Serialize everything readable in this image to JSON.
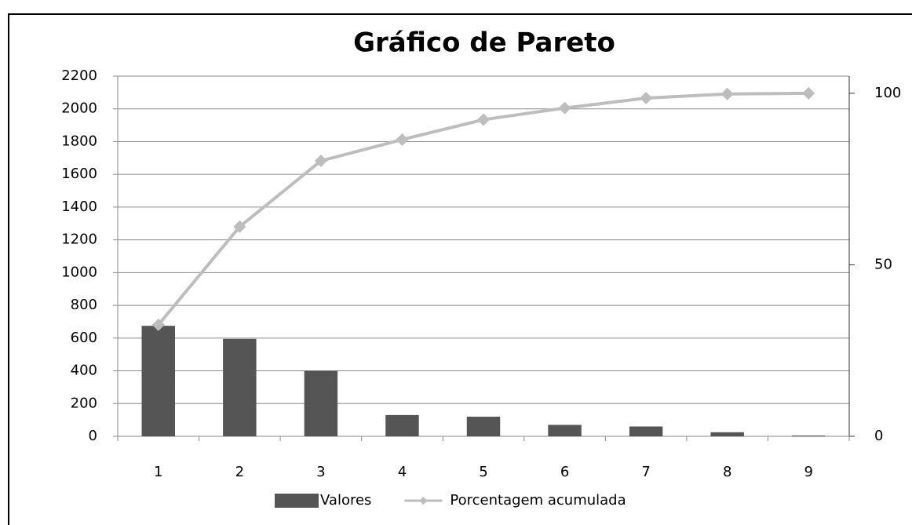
{
  "chart_data": {
    "type": "bar",
    "title": "Gráfico de Pareto",
    "categories": [
      "1",
      "2",
      "3",
      "4",
      "5",
      "6",
      "7",
      "8",
      "9"
    ],
    "series": [
      {
        "name": "Valores",
        "color": "#555555",
        "type": "bar",
        "values": [
          675,
          595,
          400,
          130,
          120,
          70,
          60,
          25,
          5
        ]
      },
      {
        "name": "Porcentagem acumulada",
        "color": "#bdbdbd",
        "type": "line",
        "axis": "y2",
        "values": [
          32.5,
          61.1,
          80.3,
          86.5,
          92.3,
          95.7,
          98.6,
          99.8,
          100
        ]
      }
    ],
    "ylim": [
      0,
      2200
    ],
    "yticks": [
      0,
      200,
      400,
      600,
      800,
      1000,
      1200,
      1400,
      1600,
      1800,
      2000,
      2200
    ],
    "y2lim": [
      0,
      105
    ],
    "y2ticks": [
      0,
      50,
      100
    ],
    "grid": true,
    "legend": "bottom"
  }
}
